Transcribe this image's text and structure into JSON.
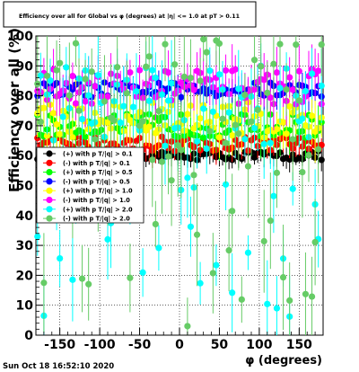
{
  "chart_data": {
    "type": "scatter",
    "title": "Efficiency over all for Global vs φ (degrees) at |η| <= 1.0 at pT > 0.11",
    "xlabel": "φ (degrees)",
    "ylabel": "Efficiency over all (%)",
    "xlim": [
      -180,
      180
    ],
    "ylim": [
      0,
      100
    ],
    "x_ticks": [
      -150,
      -100,
      -50,
      0,
      50,
      100,
      150
    ],
    "y_ticks": [
      0,
      10,
      20,
      30,
      40,
      50,
      60,
      70,
      80,
      90,
      100
    ],
    "grid": true,
    "legend_position": "left-middle",
    "timestamp": "Sun Oct 18 16:52:10 2020",
    "series": [
      {
        "name": "(+) with p T/|q| > 0.1",
        "color": "#000000",
        "level": 60,
        "spread": 1.5,
        "bar": 3,
        "count": 90
      },
      {
        "name": "(-) with p T/|q| > 0.1",
        "color": "#ff0000",
        "level": 64,
        "spread": 2.5,
        "bar": 4,
        "count": 90
      },
      {
        "name": "(+) with p T/|q| > 0.5",
        "color": "#00ff00",
        "level": 70,
        "spread": 4,
        "bar": 6,
        "count": 90
      },
      {
        "name": "(-) with p T/|q| > 0.5",
        "color": "#0000ff",
        "level": 82,
        "spread": 2.5,
        "bar": 4,
        "count": 90
      },
      {
        "name": "(+) with p T/|q| > 1.0",
        "color": "#ffff00",
        "level": 72,
        "spread": 6,
        "bar": 7,
        "count": 90
      },
      {
        "name": "(-) with p T/|q| > 1.0",
        "color": "#ff00ff",
        "level": 83,
        "spread": 6,
        "bar": 6,
        "count": 90
      },
      {
        "name": "(+) with p T/|q| > 2.0",
        "color": "#00ffff",
        "level": 76,
        "spread": 14,
        "bar": 10,
        "count": 90
      },
      {
        "name": "(-) with p T/|q| > 2.0",
        "color": "#66cc66",
        "level": 75,
        "spread": 25,
        "bar": 12,
        "count": 90
      }
    ]
  }
}
